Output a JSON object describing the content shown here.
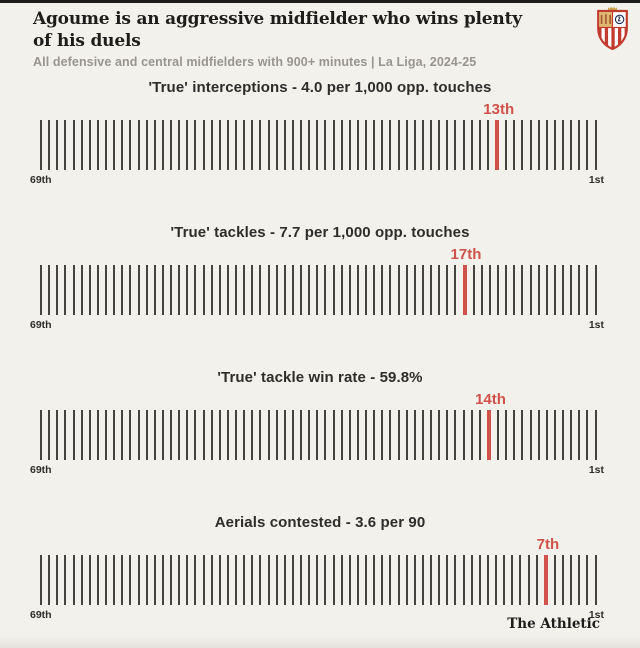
{
  "header": {
    "title": "Agoume is an aggressive midfielder who wins plenty of his duels",
    "subtitle": "All defensive and central midfielders with 900+ minutes | La Liga, 2024-25",
    "club_crest": "sevilla-fc-crest"
  },
  "charts": [
    {
      "title": "'True' interceptions - 4.0 per 1,000 opp. touches",
      "rank_label": "13th",
      "rank": 13,
      "total": 69,
      "left_label": "69th",
      "right_label": "1st"
    },
    {
      "title": "'True' tackles - 7.7 per 1,000 opp. touches",
      "rank_label": "17th",
      "rank": 17,
      "total": 69,
      "left_label": "69th",
      "right_label": "1st"
    },
    {
      "title": "'True' tackle win rate - 59.8%",
      "rank_label": "14th",
      "rank": 14,
      "total": 69,
      "left_label": "69th",
      "right_label": "1st"
    },
    {
      "title": "Aerials contested - 3.6 per 90",
      "rank_label": "7th",
      "rank": 7,
      "total": 69,
      "left_label": "69th",
      "right_label": "1st"
    }
  ],
  "chart_data": [
    {
      "type": "scatter",
      "variant": "1D rank strip (rug plot with one highlighted tick)",
      "title": "'True' interceptions - 4.0 per 1,000 opp. touches",
      "metric": "'True' interceptions",
      "player_value": 4.0,
      "value_unit": "per 1,000 opp. touches",
      "player_rank": 13,
      "rank_label": "13th",
      "total_players": 69,
      "axis": {
        "left_tick_label": "69th",
        "right_tick_label": "1st",
        "orientation": "69th (worst) at left to 1st (best) at right"
      },
      "highlight_color": "#d0524a",
      "tick_color": "#454340"
    },
    {
      "type": "scatter",
      "variant": "1D rank strip (rug plot with one highlighted tick)",
      "title": "'True' tackles - 7.7 per 1,000 opp. touches",
      "metric": "'True' tackles",
      "player_value": 7.7,
      "value_unit": "per 1,000 opp. touches",
      "player_rank": 17,
      "rank_label": "17th",
      "total_players": 69,
      "axis": {
        "left_tick_label": "69th",
        "right_tick_label": "1st",
        "orientation": "69th (worst) at left to 1st (best) at right"
      },
      "highlight_color": "#d0524a",
      "tick_color": "#454340"
    },
    {
      "type": "scatter",
      "variant": "1D rank strip (rug plot with one highlighted tick)",
      "title": "'True' tackle win rate - 59.8%",
      "metric": "'True' tackle win rate",
      "player_value": 59.8,
      "value_unit": "%",
      "player_rank": 14,
      "rank_label": "14th",
      "total_players": 69,
      "axis": {
        "left_tick_label": "69th",
        "right_tick_label": "1st",
        "orientation": "69th (worst) at left to 1st (best) at right"
      },
      "highlight_color": "#d0524a",
      "tick_color": "#454340"
    },
    {
      "type": "scatter",
      "variant": "1D rank strip (rug plot with one highlighted tick)",
      "title": "Aerials contested - 3.6 per 90",
      "metric": "Aerials contested",
      "player_value": 3.6,
      "value_unit": "per 90",
      "player_rank": 7,
      "rank_label": "7th",
      "total_players": 69,
      "axis": {
        "left_tick_label": "69th",
        "right_tick_label": "1st",
        "orientation": "69th (worst) at left to 1st (best) at right"
      },
      "highlight_color": "#d0524a",
      "tick_color": "#454340"
    }
  ],
  "footer": {
    "brand": "The Athletic"
  },
  "colors": {
    "background": "#f2f1ec",
    "accent_red": "#d0524a",
    "tick": "#454340",
    "text_dark": "#1e1d1b",
    "text_gray": "#98958d"
  }
}
